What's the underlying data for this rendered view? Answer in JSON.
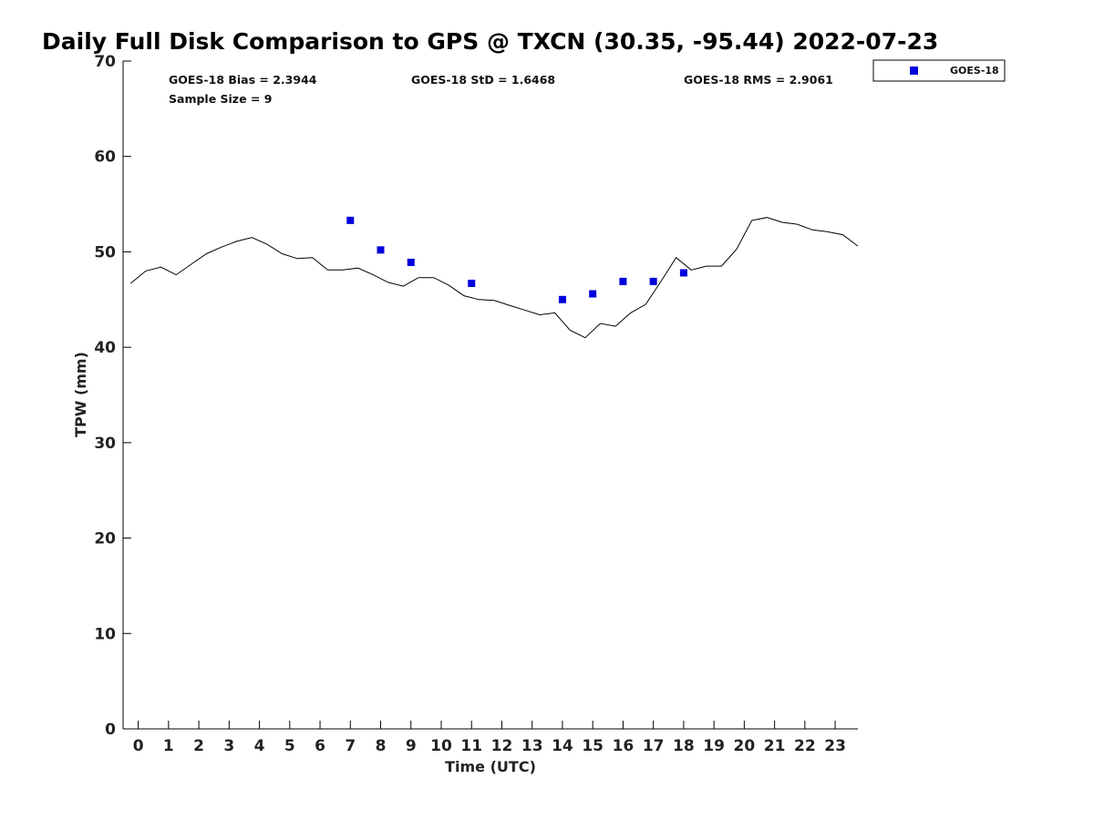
{
  "chart_data": {
    "type": "scatter",
    "title": "Daily Full Disk Comparison to GPS @ TXCN (30.35, -95.44) 2022-07-23",
    "xlabel": "Time (UTC)",
    "ylabel": "TPW (mm)",
    "xlim": [
      -0.5,
      23.75
    ],
    "ylim": [
      0,
      70
    ],
    "x_ticks": [
      0,
      1,
      2,
      3,
      4,
      5,
      6,
      7,
      8,
      9,
      10,
      11,
      12,
      13,
      14,
      15,
      16,
      17,
      18,
      19,
      20,
      21,
      22,
      23
    ],
    "x_tick_labels": [
      "0",
      "1",
      "2",
      "3",
      "4",
      "5",
      "6",
      "7",
      "8",
      "9",
      "10",
      "11",
      "12",
      "13",
      "14",
      "15",
      "16",
      "17",
      "18",
      "19",
      "20",
      "21",
      "22",
      "23"
    ],
    "y_ticks": [
      0,
      10,
      20,
      30,
      40,
      50,
      60,
      70
    ],
    "y_tick_labels": [
      "0",
      "10",
      "20",
      "30",
      "40",
      "50",
      "60",
      "70"
    ],
    "grid": false,
    "legend_position": "top-right",
    "stats": {
      "bias": "GOES-18 Bias = 2.3944",
      "std": "GOES-18 StD = 1.6468",
      "rms": "GOES-18 RMS = 2.9061",
      "sample": "Sample Size = 9"
    },
    "series": [
      {
        "name": "GOES-18",
        "kind": "scatter",
        "color": "#0000dd",
        "marker": "square",
        "x": [
          7,
          8,
          9,
          11,
          14,
          15,
          16,
          17,
          18
        ],
        "y": [
          53.3,
          50.2,
          48.9,
          46.7,
          45.0,
          45.6,
          46.9,
          46.9,
          47.8
        ]
      },
      {
        "kind": "line",
        "color": "#000000",
        "x": [
          -0.25,
          0.25,
          0.75,
          1.25,
          1.75,
          2.25,
          2.75,
          3.25,
          3.75,
          4.25,
          4.75,
          5.25,
          5.75,
          6.25,
          6.75,
          7.25,
          7.75,
          8.25,
          8.75,
          9.25,
          9.75,
          10.25,
          10.75,
          11.25,
          11.75,
          12.25,
          12.75,
          13.25,
          13.75,
          14.25,
          14.75,
          15.25,
          15.75,
          16.25,
          16.75,
          17.25,
          17.75,
          18.25,
          18.75,
          19.25,
          19.75,
          20.25,
          20.75,
          21.25,
          21.75,
          22.25,
          22.75,
          23.25,
          23.75
        ],
        "y": [
          46.7,
          48.0,
          48.4,
          47.6,
          48.7,
          49.8,
          50.5,
          51.1,
          51.5,
          50.8,
          49.8,
          49.3,
          49.4,
          48.1,
          48.1,
          48.3,
          47.6,
          46.8,
          46.4,
          47.3,
          47.3,
          46.5,
          45.4,
          45.0,
          44.9,
          44.4,
          43.9,
          43.4,
          43.6,
          41.8,
          41.0,
          42.5,
          42.2,
          43.6,
          44.5,
          46.9,
          49.4,
          48.1,
          48.5,
          48.5,
          50.3,
          53.3,
          53.6,
          53.1,
          52.9,
          52.3,
          52.1,
          51.8,
          50.6
        ]
      }
    ]
  }
}
